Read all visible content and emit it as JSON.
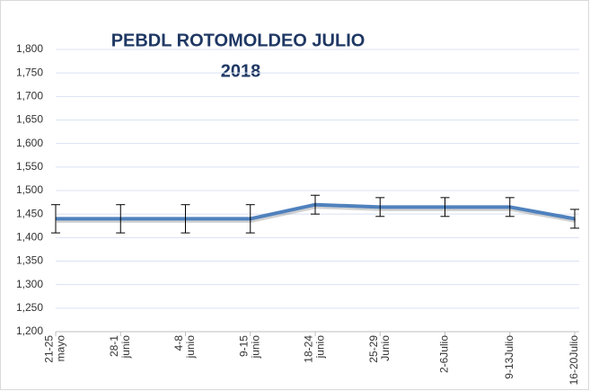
{
  "chart_data": {
    "type": "line",
    "title": "PEBDL ROTOMOLDEO JULIO",
    "subtitle": "2018",
    "categories": [
      "21-25 mayo",
      "28-1 junio",
      "4-8 junio",
      "9-15 junio",
      "18-24 junio",
      "25-29 Junio",
      "2-6Julio",
      "9-13Julio",
      "16-20Julio"
    ],
    "series": [
      {
        "color": "#4f81bd",
        "values": [
          1440,
          1440,
          1440,
          1440,
          1470,
          1465,
          1465,
          1465,
          1440
        ],
        "errors": [
          30,
          30,
          30,
          30,
          20,
          20,
          20,
          20,
          20
        ]
      }
    ],
    "ylim": [
      1200,
      1800
    ],
    "yticks": [
      {
        "value": 1200,
        "label": "1,200"
      },
      {
        "value": 1250,
        "label": "1,250"
      },
      {
        "value": 1300,
        "label": "1,300"
      },
      {
        "value": 1350,
        "label": "1,350"
      },
      {
        "value": 1400,
        "label": "1,400"
      },
      {
        "value": 1450,
        "label": "1,450"
      },
      {
        "value": 1500,
        "label": "1,500"
      },
      {
        "value": 1550,
        "label": "1,550"
      },
      {
        "value": 1600,
        "label": "1,600"
      },
      {
        "value": 1650,
        "label": "1,650"
      },
      {
        "value": 1700,
        "label": "1,700"
      },
      {
        "value": 1750,
        "label": "1,750"
      },
      {
        "value": 1800,
        "label": "1,800"
      }
    ],
    "grid": true
  }
}
